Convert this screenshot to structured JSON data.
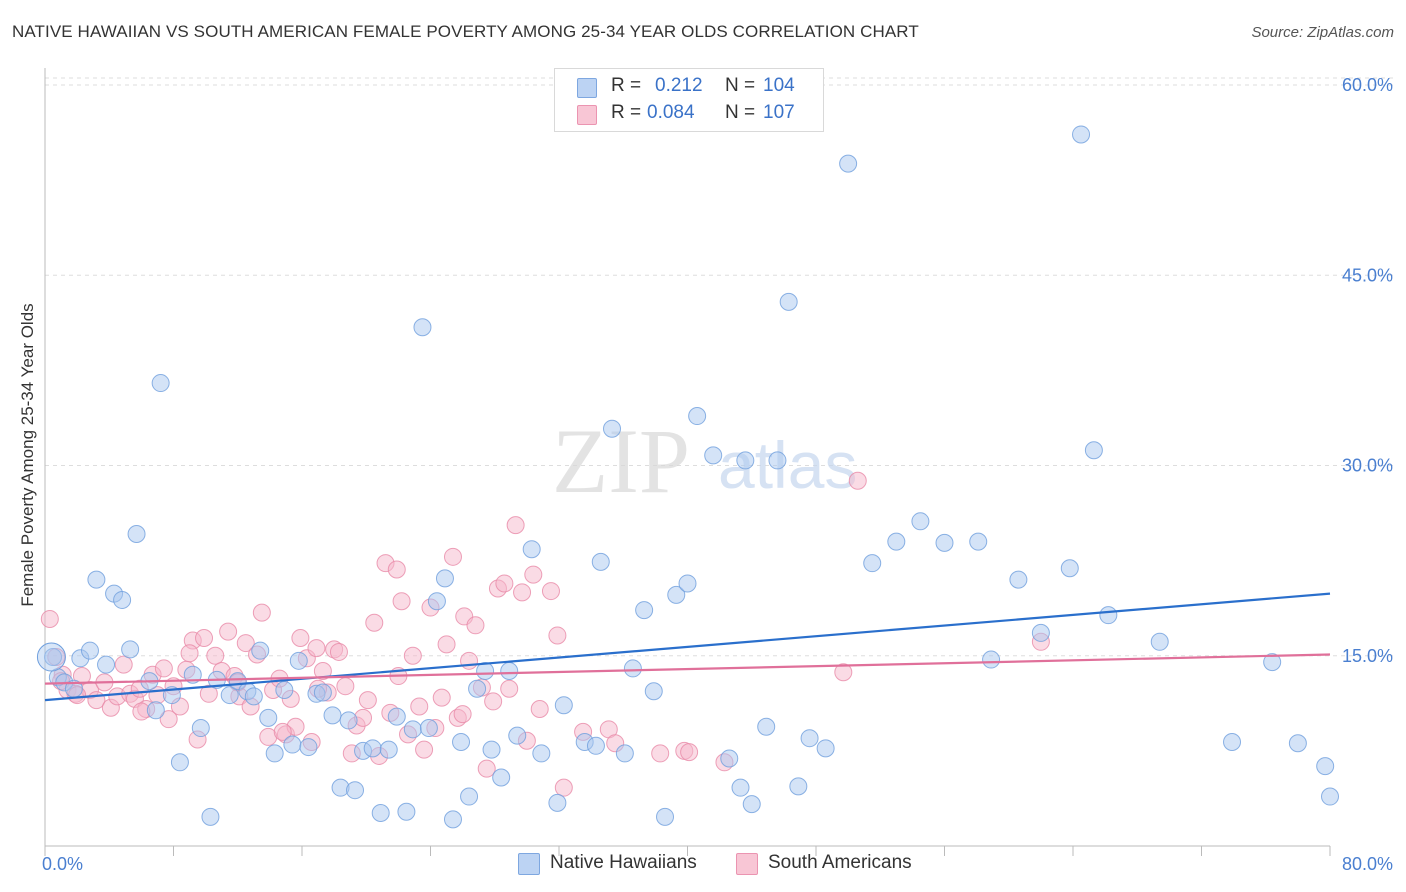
{
  "title": "NATIVE HAWAIIAN VS SOUTH AMERICAN FEMALE POVERTY AMONG 25-34 YEAR OLDS CORRELATION CHART",
  "source": "Source: ZipAtlas.com",
  "watermark": {
    "zip": "ZIP",
    "atlas": "atlas"
  },
  "legend": {
    "rows": [
      {
        "r_label": "R =",
        "r_value": "0.212",
        "n_label": "N =",
        "n_value": "104"
      },
      {
        "r_label": "R =",
        "r_value": "0.084",
        "n_label": "N =",
        "n_value": "107"
      }
    ]
  },
  "colors": {
    "blue_fill": "#a9c7f0",
    "blue_stroke": "#6f9fdd",
    "blue_line": "#2a6fcc",
    "pink_fill": "#f6b8cb",
    "pink_stroke": "#e98aa8",
    "pink_line": "#e0709a",
    "axis_text": "#4a7fd0",
    "grid": "#dddddd"
  },
  "chart_data": {
    "type": "scatter",
    "title": "NATIVE HAWAIIAN VS SOUTH AMERICAN FEMALE POVERTY AMONG 25-34 YEAR OLDS CORRELATION CHART",
    "xlabel": "",
    "ylabel": "Female Poverty Among 25-34 Year Olds",
    "xlim": [
      0,
      80
    ],
    "ylim": [
      0,
      60
    ],
    "x_tick_labels": [
      "0.0%",
      "80.0%"
    ],
    "y_ticks": [
      15,
      30,
      45,
      60
    ],
    "y_tick_labels": [
      "15.0%",
      "30.0%",
      "45.0%",
      "60.0%"
    ],
    "grid": true,
    "legend_placement": "top-center",
    "series": [
      {
        "name": "Native Hawaiians",
        "r": 0.212,
        "n": 104,
        "trend": {
          "x": [
            0,
            80
          ],
          "y": [
            11.5,
            19.9
          ]
        },
        "points": [
          [
            0.5,
            14.9
          ],
          [
            0.8,
            13.3
          ],
          [
            1.2,
            12.9
          ],
          [
            1.8,
            12.4
          ],
          [
            2.2,
            14.8
          ],
          [
            2.8,
            15.4
          ],
          [
            3.2,
            21.0
          ],
          [
            3.8,
            14.3
          ],
          [
            4.3,
            19.9
          ],
          [
            4.8,
            19.4
          ],
          [
            5.3,
            15.5
          ],
          [
            5.7,
            24.6
          ],
          [
            6.5,
            13.0
          ],
          [
            6.9,
            10.7
          ],
          [
            7.2,
            36.5
          ],
          [
            7.9,
            11.9
          ],
          [
            8.4,
            6.6
          ],
          [
            9.2,
            13.5
          ],
          [
            9.7,
            9.3
          ],
          [
            10.3,
            2.3
          ],
          [
            10.7,
            13.1
          ],
          [
            11.5,
            11.9
          ],
          [
            12.0,
            13.0
          ],
          [
            12.6,
            12.2
          ],
          [
            13.0,
            11.8
          ],
          [
            13.4,
            15.4
          ],
          [
            13.9,
            10.1
          ],
          [
            14.3,
            7.3
          ],
          [
            14.9,
            12.3
          ],
          [
            15.4,
            8.0
          ],
          [
            15.8,
            14.6
          ],
          [
            16.4,
            7.8
          ],
          [
            16.9,
            12.0
          ],
          [
            17.3,
            12.1
          ],
          [
            17.9,
            10.3
          ],
          [
            18.4,
            4.6
          ],
          [
            18.9,
            9.9
          ],
          [
            19.3,
            4.4
          ],
          [
            19.8,
            7.5
          ],
          [
            20.4,
            7.7
          ],
          [
            20.9,
            2.6
          ],
          [
            21.4,
            7.6
          ],
          [
            21.9,
            10.2
          ],
          [
            22.5,
            2.7
          ],
          [
            22.9,
            9.2
          ],
          [
            23.5,
            40.9
          ],
          [
            23.9,
            9.3
          ],
          [
            24.4,
            19.3
          ],
          [
            24.9,
            21.1
          ],
          [
            25.4,
            2.1
          ],
          [
            25.9,
            8.2
          ],
          [
            26.4,
            3.9
          ],
          [
            26.9,
            12.4
          ],
          [
            27.4,
            13.8
          ],
          [
            27.8,
            7.6
          ],
          [
            28.4,
            5.4
          ],
          [
            28.9,
            13.8
          ],
          [
            29.4,
            8.7
          ],
          [
            30.3,
            23.4
          ],
          [
            30.9,
            7.3
          ],
          [
            31.9,
            3.4
          ],
          [
            32.3,
            11.1
          ],
          [
            33.6,
            8.2
          ],
          [
            34.3,
            7.9
          ],
          [
            34.6,
            22.4
          ],
          [
            35.3,
            32.9
          ],
          [
            36.1,
            7.3
          ],
          [
            36.6,
            14.0
          ],
          [
            37.3,
            18.6
          ],
          [
            37.9,
            12.2
          ],
          [
            38.6,
            2.3
          ],
          [
            39.3,
            19.8
          ],
          [
            40.0,
            20.7
          ],
          [
            40.6,
            33.9
          ],
          [
            41.6,
            30.8
          ],
          [
            42.6,
            6.9
          ],
          [
            43.3,
            4.6
          ],
          [
            43.6,
            30.4
          ],
          [
            44.9,
            9.4
          ],
          [
            45.6,
            30.4
          ],
          [
            46.3,
            42.9
          ],
          [
            46.9,
            4.7
          ],
          [
            47.6,
            8.5
          ],
          [
            48.6,
            7.7
          ],
          [
            50.0,
            53.8
          ],
          [
            51.5,
            22.3
          ],
          [
            53.0,
            24.0
          ],
          [
            54.5,
            25.6
          ],
          [
            56.0,
            23.9
          ],
          [
            58.1,
            24.0
          ],
          [
            58.9,
            14.7
          ],
          [
            60.6,
            21.0
          ],
          [
            62.0,
            16.8
          ],
          [
            63.8,
            21.9
          ],
          [
            64.5,
            56.1
          ],
          [
            65.3,
            31.2
          ],
          [
            66.2,
            18.2
          ],
          [
            69.4,
            16.1
          ],
          [
            73.9,
            8.2
          ],
          [
            76.4,
            14.5
          ],
          [
            78.0,
            8.1
          ],
          [
            79.7,
            6.3
          ],
          [
            80.0,
            3.9
          ],
          [
            44.0,
            3.3
          ]
        ]
      },
      {
        "name": "South Americans",
        "r": 0.084,
        "n": 107,
        "trend": {
          "x": [
            0,
            80
          ],
          "y": [
            12.8,
            15.1
          ]
        },
        "points": [
          [
            0.3,
            17.9
          ],
          [
            0.7,
            14.9
          ],
          [
            1.1,
            13.5
          ],
          [
            1.4,
            12.3
          ],
          [
            1.9,
            12.0
          ],
          [
            2.3,
            13.4
          ],
          [
            2.8,
            12.3
          ],
          [
            3.2,
            11.5
          ],
          [
            3.7,
            12.9
          ],
          [
            4.1,
            10.9
          ],
          [
            4.5,
            11.8
          ],
          [
            4.9,
            14.3
          ],
          [
            5.3,
            12.0
          ],
          [
            5.6,
            11.6
          ],
          [
            5.9,
            12.4
          ],
          [
            6.3,
            10.8
          ],
          [
            6.7,
            13.5
          ],
          [
            7.0,
            11.9
          ],
          [
            7.4,
            14.0
          ],
          [
            7.7,
            10.0
          ],
          [
            8.0,
            12.6
          ],
          [
            8.4,
            11.0
          ],
          [
            8.8,
            13.9
          ],
          [
            9.2,
            16.2
          ],
          [
            9.5,
            8.4
          ],
          [
            9.9,
            16.4
          ],
          [
            10.2,
            12.0
          ],
          [
            10.6,
            15.0
          ],
          [
            11.0,
            13.8
          ],
          [
            11.4,
            16.9
          ],
          [
            11.8,
            13.4
          ],
          [
            12.1,
            11.8
          ],
          [
            12.5,
            16.0
          ],
          [
            12.8,
            11.0
          ],
          [
            13.2,
            15.1
          ],
          [
            13.5,
            18.4
          ],
          [
            13.9,
            8.6
          ],
          [
            14.2,
            12.3
          ],
          [
            14.6,
            13.2
          ],
          [
            15.0,
            8.8
          ],
          [
            15.3,
            11.6
          ],
          [
            15.6,
            9.4
          ],
          [
            15.9,
            16.4
          ],
          [
            16.3,
            14.8
          ],
          [
            16.6,
            8.2
          ],
          [
            16.9,
            15.6
          ],
          [
            17.3,
            13.8
          ],
          [
            17.6,
            12.1
          ],
          [
            18.0,
            15.5
          ],
          [
            18.3,
            15.3
          ],
          [
            18.7,
            12.6
          ],
          [
            19.1,
            7.3
          ],
          [
            19.4,
            9.5
          ],
          [
            19.8,
            10.1
          ],
          [
            20.1,
            11.5
          ],
          [
            20.5,
            17.6
          ],
          [
            20.8,
            7.1
          ],
          [
            21.2,
            22.3
          ],
          [
            21.5,
            10.5
          ],
          [
            21.9,
            21.8
          ],
          [
            22.2,
            19.3
          ],
          [
            22.6,
            8.8
          ],
          [
            22.9,
            15.0
          ],
          [
            23.3,
            11.0
          ],
          [
            23.6,
            7.6
          ],
          [
            24.0,
            18.8
          ],
          [
            24.3,
            9.3
          ],
          [
            24.7,
            11.7
          ],
          [
            25.0,
            15.9
          ],
          [
            25.4,
            22.8
          ],
          [
            25.7,
            10.1
          ],
          [
            26.1,
            18.1
          ],
          [
            26.4,
            14.6
          ],
          [
            26.8,
            17.4
          ],
          [
            27.2,
            12.5
          ],
          [
            27.5,
            6.1
          ],
          [
            27.9,
            11.4
          ],
          [
            28.2,
            20.3
          ],
          [
            28.6,
            20.7
          ],
          [
            28.9,
            12.4
          ],
          [
            29.3,
            25.3
          ],
          [
            29.7,
            20.0
          ],
          [
            30.0,
            8.3
          ],
          [
            30.4,
            21.4
          ],
          [
            30.8,
            10.8
          ],
          [
            31.5,
            20.1
          ],
          [
            31.9,
            16.6
          ],
          [
            32.3,
            4.6
          ],
          [
            35.1,
            9.2
          ],
          [
            35.5,
            8.1
          ],
          [
            38.3,
            7.3
          ],
          [
            39.8,
            7.5
          ],
          [
            40.1,
            7.4
          ],
          [
            42.3,
            6.6
          ],
          [
            49.7,
            13.7
          ],
          [
            50.6,
            28.8
          ],
          [
            62.0,
            16.1
          ],
          [
            1.0,
            13.0
          ],
          [
            2.0,
            11.9
          ],
          [
            6.0,
            10.6
          ],
          [
            9.0,
            15.2
          ],
          [
            14.8,
            9.0
          ],
          [
            17.0,
            12.4
          ],
          [
            22.0,
            13.4
          ],
          [
            26.0,
            10.4
          ],
          [
            33.5,
            9.0
          ],
          [
            12.0,
            12.9
          ]
        ]
      }
    ]
  },
  "bottom_legend": [
    {
      "label": "Native Hawaiians"
    },
    {
      "label": "South Americans"
    }
  ]
}
